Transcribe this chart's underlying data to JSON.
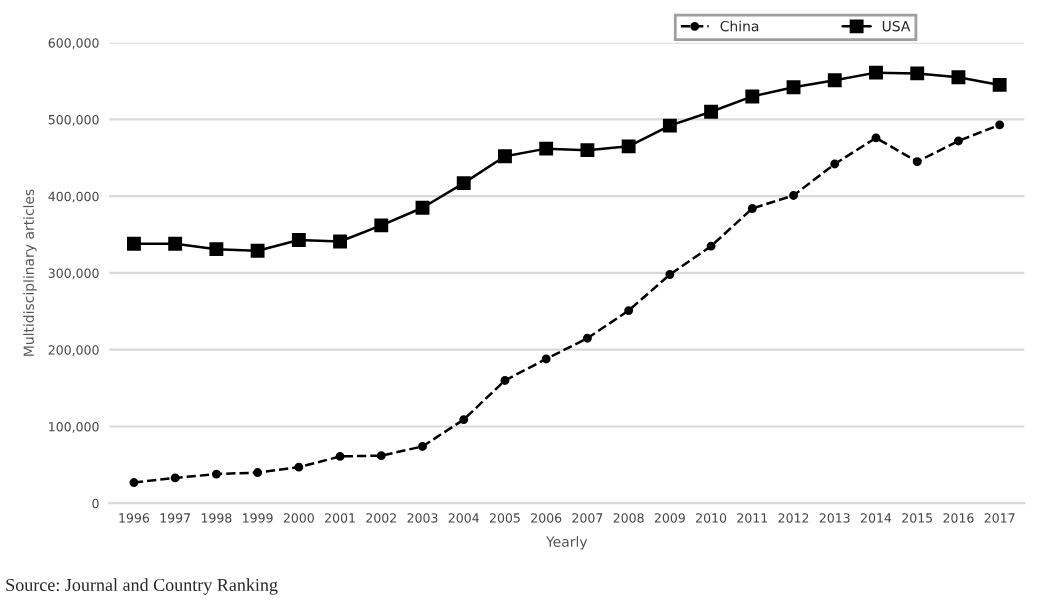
{
  "chart_data": {
    "type": "line",
    "xlabel": "Yearly",
    "ylabel": "Multidisciplinary articles",
    "categories": [
      "1996",
      "1997",
      "1998",
      "1999",
      "2000",
      "2001",
      "2002",
      "2003",
      "2004",
      "2005",
      "2006",
      "2007",
      "2008",
      "2009",
      "2010",
      "2011",
      "2012",
      "2013",
      "2014",
      "2015",
      "2016",
      "2017"
    ],
    "series": [
      {
        "name": "China",
        "color": "#000000",
        "marker": "circle",
        "line_style": "dashed",
        "values": [
          27000,
          33000,
          38000,
          40000,
          47000,
          61000,
          62000,
          74000,
          109000,
          160000,
          188000,
          215000,
          251000,
          298000,
          335000,
          384000,
          401000,
          442000,
          476000,
          445000,
          472000,
          493000
        ]
      },
      {
        "name": "USA",
        "color": "#000000",
        "marker": "square",
        "line_style": "solid",
        "values": [
          338000,
          338000,
          331000,
          329000,
          343000,
          341000,
          362000,
          385000,
          417000,
          452000,
          462000,
          460000,
          465000,
          492000,
          510000,
          530000,
          542000,
          551000,
          561000,
          560000,
          555000,
          545000
        ]
      }
    ],
    "ylim": [
      0,
      600000
    ],
    "yticks": [
      {
        "value": 0,
        "label": "0"
      },
      {
        "value": 100000,
        "label": "100,000"
      },
      {
        "value": 200000,
        "label": "200,000"
      },
      {
        "value": 300000,
        "label": "300,000"
      },
      {
        "value": 400000,
        "label": "400,000"
      },
      {
        "value": 500000,
        "label": "500,000"
      },
      {
        "value": 600000,
        "label": "600,000"
      }
    ],
    "grid": "y",
    "legend": "top",
    "annotations": [
      "Source: Journal and Country Ranking"
    ]
  }
}
